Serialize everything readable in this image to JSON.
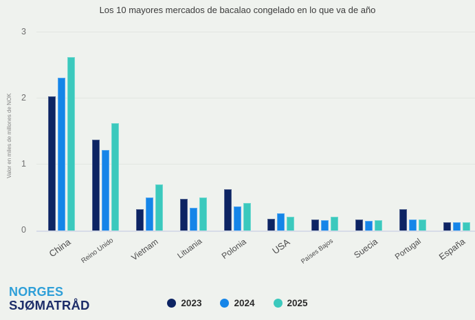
{
  "title": "Los 10 mayores mercados de bacalao congelado en lo que va de año",
  "chart_data": {
    "type": "bar",
    "title": "Los 10 mayores mercados de bacalao congelado en lo que va de año",
    "xlabel": "",
    "ylabel": "Valor en miles de millones de NOK",
    "ylim": [
      0,
      3
    ],
    "yticks": [
      0,
      1,
      2,
      3
    ],
    "grid": true,
    "legend_position": "bottom-center",
    "categories": [
      "China",
      "Reino Unido",
      "Vietnam",
      "Lituania",
      "Polonia",
      "USA",
      "Países Bajos",
      "Suecia",
      "Portugal",
      "España"
    ],
    "series": [
      {
        "name": "2023",
        "color": "#0d2463",
        "values": [
          2.03,
          1.38,
          0.32,
          0.48,
          0.62,
          0.18,
          0.17,
          0.17,
          0.32,
          0.13
        ]
      },
      {
        "name": "2024",
        "color": "#1585e8",
        "values": [
          2.31,
          1.22,
          0.5,
          0.34,
          0.36,
          0.26,
          0.16,
          0.15,
          0.17,
          0.12
        ]
      },
      {
        "name": "2025",
        "color": "#3bc9bd",
        "values": [
          2.62,
          1.62,
          0.7,
          0.5,
          0.42,
          0.21,
          0.21,
          0.16,
          0.17,
          0.13
        ]
      }
    ]
  },
  "legend": {
    "items": [
      {
        "label": "2023",
        "color": "#0d2463"
      },
      {
        "label": "2024",
        "color": "#1585e8"
      },
      {
        "label": "2025",
        "color": "#3bc9bd"
      }
    ]
  },
  "logo": {
    "line1": "NORGES",
    "line2": "SJØMATRÅD",
    "line1_color": "#2e9fd8",
    "line2_color": "#1d2d69"
  },
  "colors": {
    "background": "#eff2ee",
    "gridline": "#e2e6e1",
    "axis_line": "#d7dce8",
    "tick_label": "#6f6f6f",
    "title_text": "#3a3a3a",
    "x_label": "#4b4b4b"
  }
}
